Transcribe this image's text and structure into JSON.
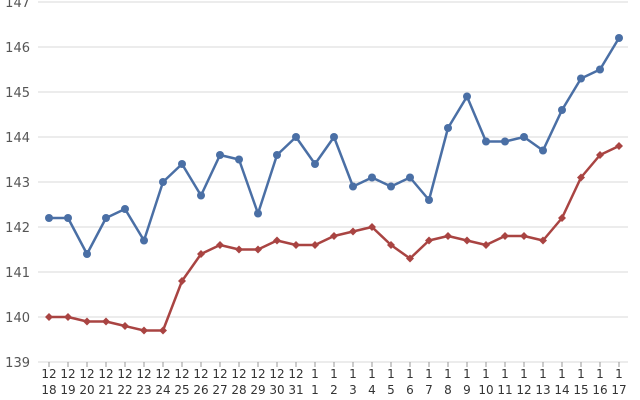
{
  "chart_data": {
    "type": "line",
    "categories": [
      [
        "12",
        "18"
      ],
      [
        "12",
        "19"
      ],
      [
        "12",
        "20"
      ],
      [
        "12",
        "21"
      ],
      [
        "12",
        "22"
      ],
      [
        "12",
        "23"
      ],
      [
        "12",
        "24"
      ],
      [
        "12",
        "25"
      ],
      [
        "12",
        "26"
      ],
      [
        "12",
        "27"
      ],
      [
        "12",
        "28"
      ],
      [
        "12",
        "29"
      ],
      [
        "12",
        "30"
      ],
      [
        "12",
        "31"
      ],
      [
        "1",
        "1"
      ],
      [
        "1",
        "2"
      ],
      [
        "1",
        "3"
      ],
      [
        "1",
        "4"
      ],
      [
        "1",
        "5"
      ],
      [
        "1",
        "6"
      ],
      [
        "1",
        "7"
      ],
      [
        "1",
        "8"
      ],
      [
        "1",
        "9"
      ],
      [
        "1",
        "10"
      ],
      [
        "1",
        "11"
      ],
      [
        "1",
        "12"
      ],
      [
        "1",
        "13"
      ],
      [
        "1",
        "14"
      ],
      [
        "1",
        "15"
      ],
      [
        "1",
        "16"
      ],
      [
        "1",
        "17"
      ]
    ],
    "series": [
      {
        "color": "#4a6fa5",
        "marker": "circle",
        "values": [
          142.2,
          142.2,
          141.4,
          142.2,
          142.4,
          141.7,
          143.0,
          143.4,
          142.7,
          143.6,
          143.5,
          142.3,
          143.6,
          144.0,
          143.4,
          144.0,
          142.9,
          143.1,
          142.9,
          143.1,
          142.6,
          144.2,
          144.9,
          143.9,
          143.9,
          144.0,
          143.7,
          144.6,
          145.3,
          145.5,
          146.2
        ]
      },
      {
        "color": "#a94442",
        "marker": "diamond",
        "values": [
          140.0,
          140.0,
          139.9,
          139.9,
          139.8,
          139.7,
          139.7,
          140.8,
          141.4,
          141.6,
          141.5,
          141.5,
          141.7,
          141.6,
          141.6,
          141.8,
          141.9,
          142.0,
          141.6,
          141.3,
          141.7,
          141.8,
          141.7,
          141.6,
          141.8,
          141.8,
          141.7,
          142.2,
          143.1,
          143.6,
          143.8
        ]
      }
    ],
    "yticks": [
      "139",
      "140",
      "141",
      "142",
      "143",
      "144",
      "145",
      "146",
      "147"
    ],
    "ylim": [
      139,
      147
    ],
    "grid": true,
    "xlabel": "",
    "ylabel": "",
    "title": ""
  }
}
